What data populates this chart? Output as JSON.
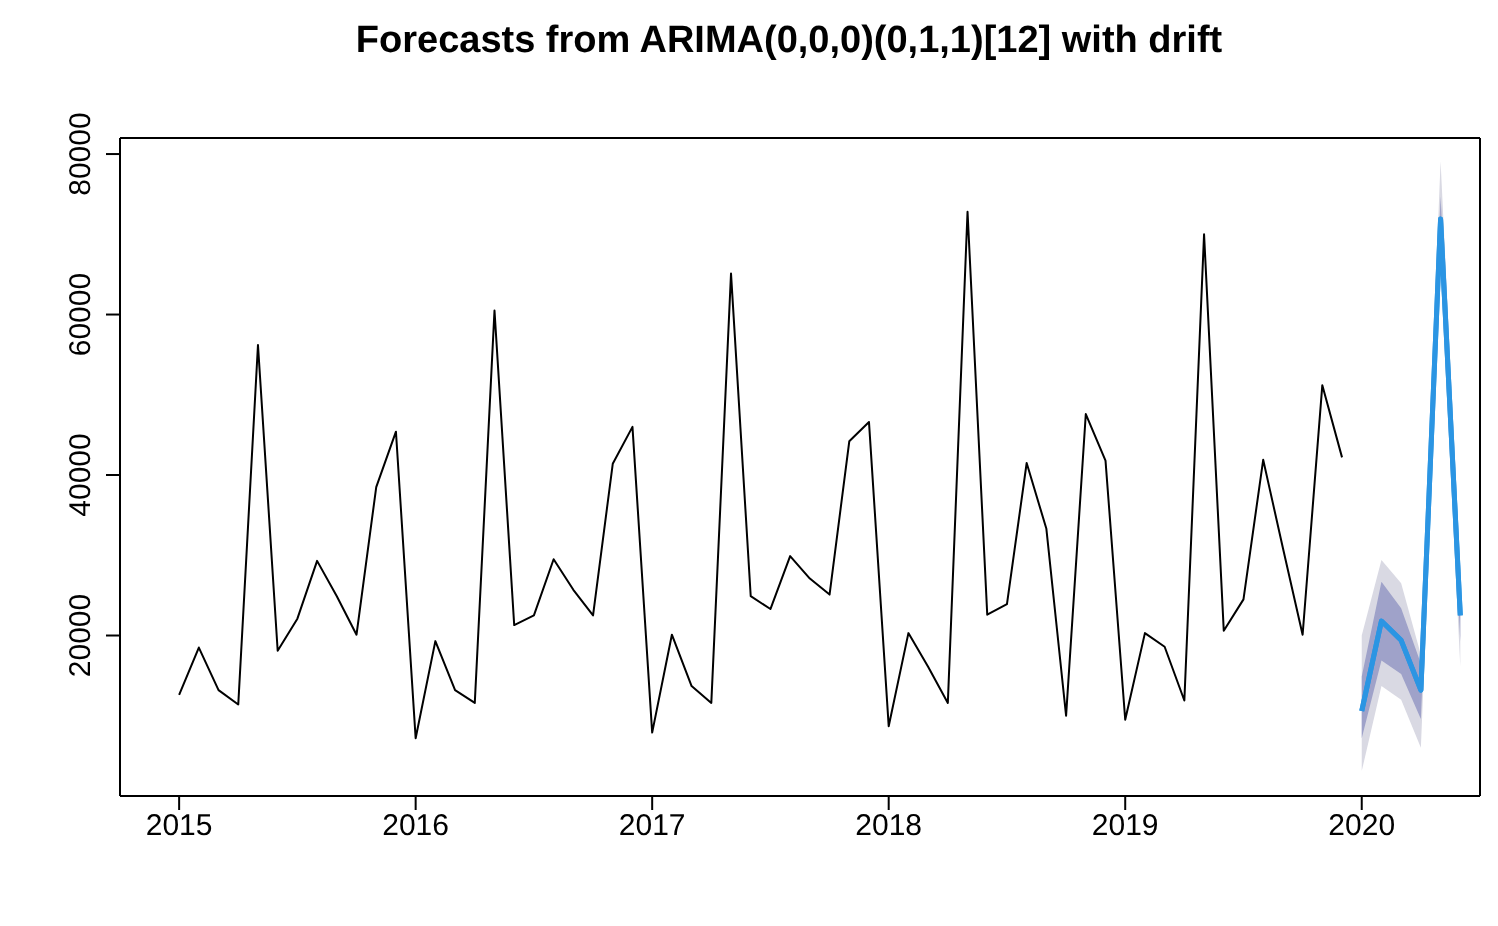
{
  "chart_data": {
    "type": "line",
    "title": "Forecasts from ARIMA(0,0,0)(0,1,1)[12] with drift",
    "xlim": [
      "2014-10",
      "2020-07"
    ],
    "xticks": [
      "2015",
      "2016",
      "2017",
      "2018",
      "2019",
      "2020"
    ],
    "ylim": [
      0,
      82000
    ],
    "yticks": [
      20000,
      40000,
      60000,
      80000
    ],
    "grid": false,
    "marker": "none",
    "line_style": "solid",
    "series": [
      {
        "color": "#000000",
        "x": [
          "2015-01",
          "2015-02",
          "2015-03",
          "2015-04",
          "2015-05",
          "2015-06",
          "2015-07",
          "2015-08",
          "2015-09",
          "2015-10",
          "2015-11",
          "2015-12",
          "2016-01",
          "2016-02",
          "2016-03",
          "2016-04",
          "2016-05",
          "2016-06",
          "2016-07",
          "2016-08",
          "2016-09",
          "2016-10",
          "2016-11",
          "2016-12",
          "2017-01",
          "2017-02",
          "2017-03",
          "2017-04",
          "2017-05",
          "2017-06",
          "2017-07",
          "2017-08",
          "2017-09",
          "2017-10",
          "2017-11",
          "2017-12",
          "2018-01",
          "2018-02",
          "2018-03",
          "2018-04",
          "2018-05",
          "2018-06",
          "2018-07",
          "2018-08",
          "2018-09",
          "2018-10",
          "2018-11",
          "2018-12",
          "2019-01",
          "2019-02",
          "2019-03",
          "2019-04",
          "2019-05",
          "2019-06",
          "2019-07",
          "2019-08",
          "2019-09",
          "2019-10",
          "2019-11",
          "2019-12"
        ],
        "values": [
          12600,
          18500,
          13200,
          11400,
          56200,
          18100,
          22100,
          29300,
          24900,
          20100,
          38500,
          45400,
          7200,
          19300,
          13200,
          11600,
          60500,
          21300,
          22500,
          29500,
          25700,
          22500,
          41400,
          46000,
          7900,
          20100,
          13700,
          11600,
          65100,
          24900,
          23300,
          29900,
          27100,
          25100,
          44200,
          46600,
          8700,
          20300,
          16100,
          11600,
          72800,
          22600,
          23900,
          41500,
          33300,
          10000,
          47600,
          41800,
          9500,
          20300,
          18600,
          11900,
          70000,
          20600,
          24500,
          41900,
          30900,
          20100,
          51200,
          42200
        ]
      },
      {
        "color": "#2b95e3",
        "x": [
          "2020-01",
          "2020-02",
          "2020-03",
          "2020-04",
          "2020-05",
          "2020-06"
        ],
        "values": [
          10600,
          21800,
          19400,
          13200,
          71900,
          22500
        ],
        "lower": [
          3100,
          13700,
          12000,
          6000,
          65900,
          16100
        ],
        "upper": [
          20000,
          29400,
          26500,
          17600,
          79100,
          28200
        ]
      },
      {
        "color": "#2b95e3",
        "x": [
          "2020-01",
          "2020-02",
          "2020-03",
          "2020-04",
          "2020-05",
          "2020-06"
        ],
        "values": [
          10600,
          21800,
          19400,
          13200,
          71900,
          22500
        ],
        "lower": [
          7200,
          16900,
          15200,
          9600,
          68300,
          19300
        ],
        "upper": [
          14900,
          26700,
          23400,
          16500,
          74700,
          25800
        ]
      }
    ]
  }
}
